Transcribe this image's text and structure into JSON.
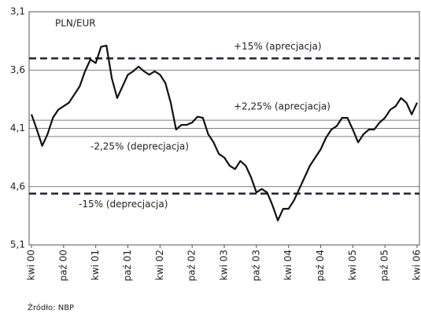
{
  "chart_data": {
    "type": "line",
    "title": "PLN/EUR",
    "source": "Źródło: NBP",
    "categories": [
      "kwi 00",
      null,
      null,
      null,
      null,
      null,
      "paź 00",
      null,
      null,
      null,
      null,
      null,
      "kwi 01",
      null,
      null,
      null,
      null,
      null,
      "paź 01",
      null,
      null,
      null,
      null,
      null,
      "kwi 02",
      null,
      null,
      null,
      null,
      null,
      "paź 02",
      null,
      null,
      null,
      null,
      null,
      "kwi 03",
      null,
      null,
      null,
      null,
      null,
      "paź 03",
      null,
      null,
      null,
      null,
      null,
      "kwi 04",
      null,
      null,
      null,
      null,
      null,
      "paź 04",
      null,
      null,
      null,
      null,
      null,
      "kwi 05",
      null,
      null,
      null,
      null,
      null,
      "paź 05",
      null,
      null,
      null,
      null,
      null,
      "kwi 06"
    ],
    "series": [
      {
        "name": "PLN/EUR",
        "color": "#111111",
        "values": [
          3.98,
          4.11,
          4.25,
          4.15,
          4.01,
          3.94,
          3.91,
          3.88,
          3.81,
          3.74,
          3.61,
          3.51,
          3.54,
          3.4,
          3.39,
          3.67,
          3.84,
          3.74,
          3.64,
          3.61,
          3.57,
          3.61,
          3.64,
          3.61,
          3.64,
          3.71,
          3.88,
          4.11,
          4.07,
          4.07,
          4.05,
          4.0,
          4.01,
          4.15,
          4.22,
          4.32,
          4.35,
          4.42,
          4.45,
          4.38,
          4.42,
          4.52,
          4.65,
          4.62,
          4.65,
          4.76,
          4.89,
          4.79,
          4.79,
          4.72,
          4.62,
          4.52,
          4.42,
          4.35,
          4.28,
          4.18,
          4.11,
          4.08,
          4.01,
          4.01,
          4.11,
          4.22,
          4.15,
          4.11,
          4.11,
          4.05,
          4.01,
          3.94,
          3.91,
          3.84,
          3.88,
          3.98,
          3.88
        ]
      }
    ],
    "ylim": [
      3.1,
      5.1
    ],
    "y_inverted": true,
    "yticks": [
      {
        "value": 3.1,
        "label": "3,1"
      },
      {
        "value": 3.6,
        "label": "3,6"
      },
      {
        "value": 4.1,
        "label": "4,1"
      },
      {
        "value": 4.6,
        "label": "4,6"
      },
      {
        "value": 5.1,
        "label": "5,1"
      }
    ],
    "grid": true,
    "reference_lines": [
      {
        "label": "+15% (aprecjacja)",
        "value": 3.5,
        "style": "dashed"
      },
      {
        "label": "+2,25% (aprecjacja)",
        "value": 4.03,
        "style": "solid"
      },
      {
        "label": "-2,25% (deprecjacja)",
        "value": 4.17,
        "style": "solid"
      },
      {
        "label": "-15% (deprecjacja)",
        "value": 4.66,
        "style": "dashed"
      }
    ]
  }
}
